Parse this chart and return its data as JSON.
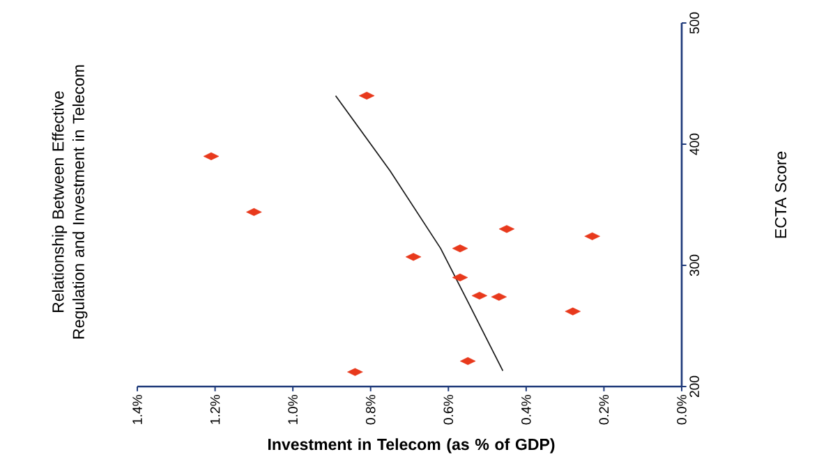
{
  "chart_data": {
    "type": "scatter",
    "title": "Relationship Between Effective Regulation and Investment in Telecom",
    "xlabel": "Investment in Telecom (as % of GDP)",
    "ylabel": "ECTA Score",
    "xlim": [
      1.4,
      0
    ],
    "ylim": [
      200,
      500
    ],
    "xticks": [
      {
        "value": 1.4,
        "label": "1.4%"
      },
      {
        "value": 1.2,
        "label": "1.2%"
      },
      {
        "value": 1.0,
        "label": "1.0%"
      },
      {
        "value": 0.8,
        "label": "0.8%"
      },
      {
        "value": 0.6,
        "label": "0.6%"
      },
      {
        "value": 0.4,
        "label": "0.4%"
      },
      {
        "value": 0.2,
        "label": "0.2%"
      },
      {
        "value": 0.0,
        "label": "0.0%"
      }
    ],
    "yticks": [
      200,
      300,
      400,
      500
    ],
    "series": [
      {
        "color": "#e8391c",
        "marker": "diamond",
        "x": [
          0.81,
          1.21,
          1.1,
          0.45,
          0.23,
          0.57,
          0.69,
          0.57,
          0.52,
          0.47,
          0.28,
          0.55,
          0.84
        ],
        "values": [
          440,
          390,
          344,
          330,
          324,
          314,
          307,
          290,
          275,
          274,
          262,
          221,
          212
        ]
      },
      {
        "type": "line",
        "color": "#1a1a1a",
        "marker": "none",
        "x": [
          0.46,
          0.55,
          0.62,
          0.75,
          0.89
        ],
        "values": [
          213,
          270,
          314,
          378,
          440
        ]
      }
    ]
  }
}
